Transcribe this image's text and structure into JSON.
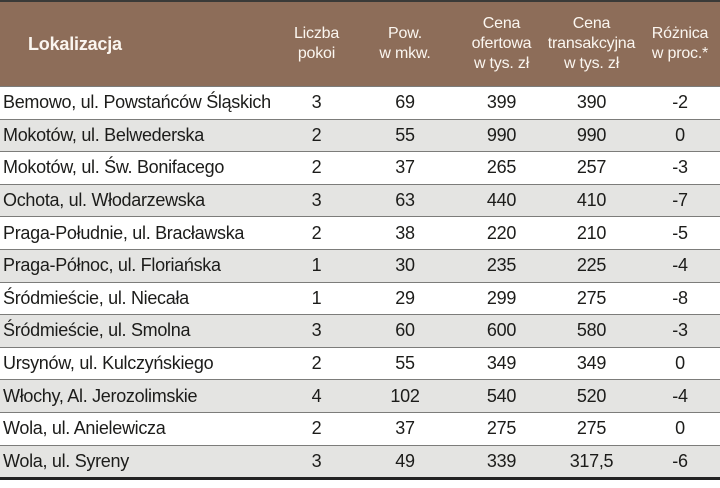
{
  "chart_data": {
    "type": "table",
    "columns": [
      "Lokalizacja",
      "Liczba pokoi",
      "Pow. w mkw.",
      "Cena ofertowa w tys. zł",
      "Cena transakcyjna w tys. zł",
      "Różnica w proc.*"
    ],
    "rows": [
      [
        "Bemowo, ul. Powstańców Śląskich",
        "3",
        "69",
        "399",
        "390",
        "-2"
      ],
      [
        "Mokotów, ul. Belwederska",
        "2",
        "55",
        "990",
        "990",
        "0"
      ],
      [
        "Mokotów, ul. Św. Bonifacego",
        "2",
        "37",
        "265",
        "257",
        "-3"
      ],
      [
        "Ochota, ul. Włodarzewska",
        "3",
        "63",
        "440",
        "410",
        "-7"
      ],
      [
        "Praga-Południe, ul. Bracławska",
        "2",
        "38",
        "220",
        "210",
        "-5"
      ],
      [
        "Praga-Północ, ul. Floriańska",
        "1",
        "30",
        "235",
        "225",
        "-4"
      ],
      [
        "Śródmieście, ul. Niecała",
        "1",
        "29",
        "299",
        "275",
        "-8"
      ],
      [
        "Śródmieście, ul. Smolna",
        "3",
        "60",
        "600",
        "580",
        "-3"
      ],
      [
        "Ursynów, ul. Kulczyńskiego",
        "2",
        "55",
        "349",
        "349",
        "0"
      ],
      [
        "Włochy, Al. Jerozolimskie",
        "4",
        "102",
        "540",
        "520",
        "-4"
      ],
      [
        "Wola, ul. Anielewicza",
        "2",
        "37",
        "275",
        "275",
        "0"
      ],
      [
        "Wola, ul. Syreny",
        "3",
        "49",
        "339",
        "317,5",
        "-6"
      ]
    ]
  },
  "table": {
    "header": {
      "location": "Lokalizacja",
      "rooms": "Liczba\npokoi",
      "area": "Pow.\nw mkw.",
      "offer_price": "Cena\nofertowa\nw tys. zł",
      "transaction_price": "Cena\ntransakcyjna\nw tys. zł",
      "difference": "Różnica\nw proc.*"
    }
  },
  "colors": {
    "header_bg": "#8D6D59",
    "header_text": "#FBF6F0",
    "row_alt_bg": "#E4E4E2",
    "row_bg": "#FFFFFF",
    "body_text": "#1C1C1A",
    "row_separator": "#7C7C7A",
    "border_top": "#3A3A38",
    "border_bottom": "#232323"
  }
}
